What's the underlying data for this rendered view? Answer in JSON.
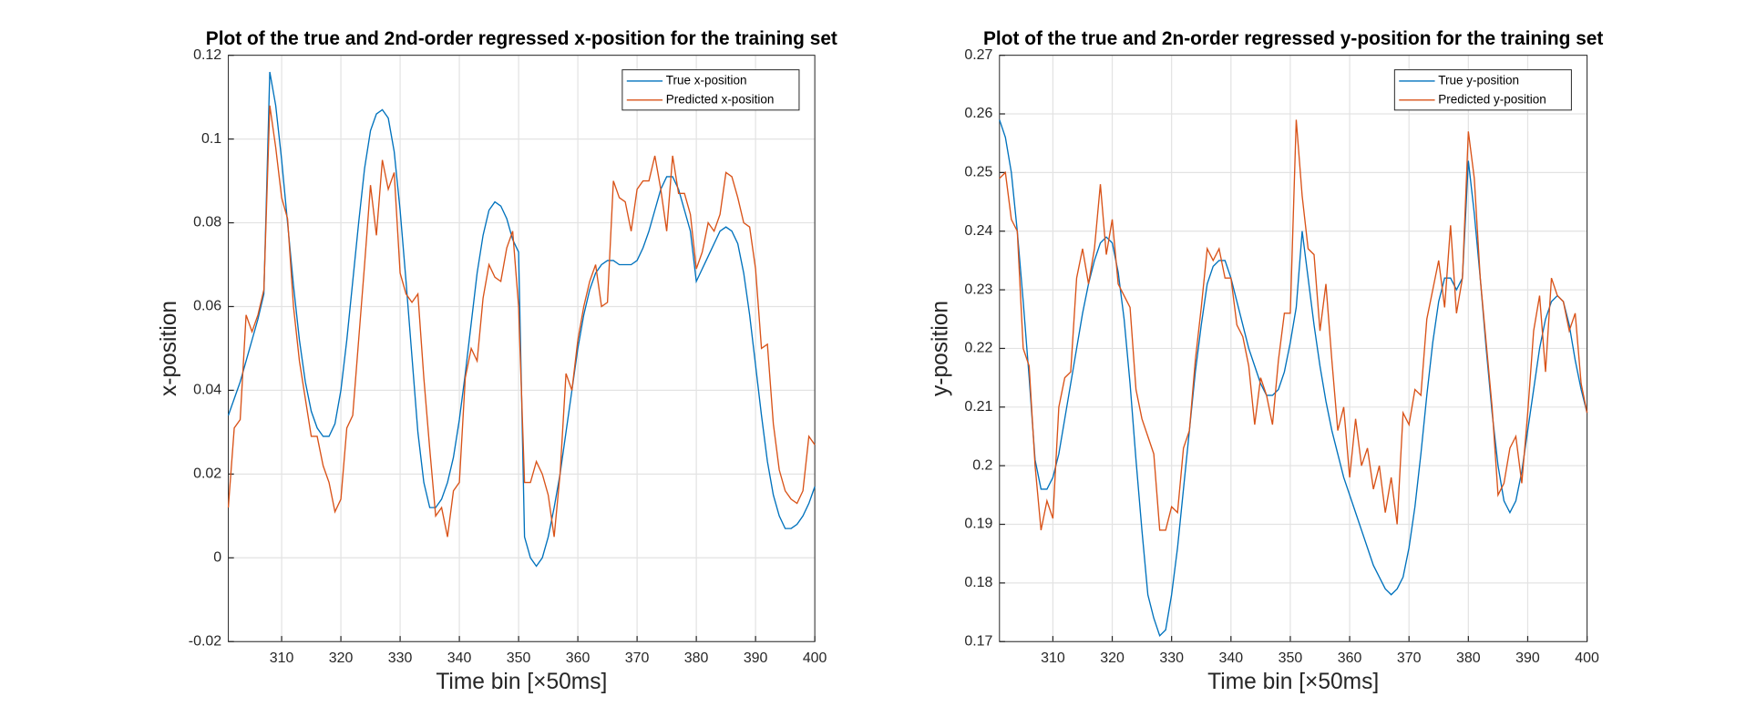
{
  "chart_data": [
    {
      "type": "line",
      "title": "Plot of the true and 2nd-order regressed x-position for the training set",
      "xlabel": "Time bin [×50ms]",
      "ylabel": "x-position",
      "x": [
        301,
        302,
        303,
        304,
        305,
        306,
        307,
        308,
        309,
        310,
        311,
        312,
        313,
        314,
        315,
        316,
        317,
        318,
        319,
        320,
        321,
        322,
        323,
        324,
        325,
        326,
        327,
        328,
        329,
        330,
        331,
        332,
        333,
        334,
        335,
        336,
        337,
        338,
        339,
        340,
        341,
        342,
        343,
        344,
        345,
        346,
        347,
        348,
        349,
        350,
        351,
        352,
        353,
        354,
        355,
        356,
        357,
        358,
        359,
        360,
        361,
        362,
        363,
        364,
        365,
        366,
        367,
        368,
        369,
        370,
        371,
        372,
        373,
        374,
        375,
        376,
        377,
        378,
        379,
        380,
        381,
        382,
        383,
        384,
        385,
        386,
        387,
        388,
        389,
        390,
        391,
        392,
        393,
        394,
        395,
        396,
        397,
        398,
        399,
        400
      ],
      "xlim": [
        301,
        400
      ],
      "xticks": [
        310,
        320,
        330,
        340,
        350,
        360,
        370,
        380,
        390,
        400
      ],
      "ylim": [
        -0.02,
        0.12
      ],
      "yticks": [
        -0.02,
        0,
        0.02,
        0.04,
        0.06,
        0.08,
        0.1,
        0.12
      ],
      "grid": true,
      "legend": "northeast",
      "series": [
        {
          "name": "True x-position",
          "color": "#0072BD",
          "values": [
            0.034,
            0.038,
            0.042,
            0.047,
            0.052,
            0.057,
            0.063,
            0.116,
            0.108,
            0.095,
            0.08,
            0.065,
            0.052,
            0.042,
            0.035,
            0.031,
            0.029,
            0.029,
            0.032,
            0.04,
            0.052,
            0.066,
            0.08,
            0.093,
            0.102,
            0.106,
            0.107,
            0.105,
            0.097,
            0.083,
            0.066,
            0.048,
            0.03,
            0.018,
            0.012,
            0.012,
            0.014,
            0.018,
            0.024,
            0.033,
            0.044,
            0.056,
            0.068,
            0.077,
            0.083,
            0.085,
            0.084,
            0.081,
            0.076,
            0.073,
            0.005,
            0,
            -0.002,
            0,
            0.005,
            0.012,
            0.02,
            0.03,
            0.04,
            0.05,
            0.058,
            0.064,
            0.068,
            0.07,
            0.071,
            0.071,
            0.07,
            0.07,
            0.07,
            0.071,
            0.074,
            0.078,
            0.083,
            0.088,
            0.091,
            0.091,
            0.088,
            0.083,
            0.078,
            0.066,
            0.069,
            0.072,
            0.075,
            0.078,
            0.079,
            0.078,
            0.075,
            0.068,
            0.058,
            0.046,
            0.034,
            0.023,
            0.015,
            0.01,
            0.007,
            0.007,
            0.008,
            0.01,
            0.013,
            0.017
          ]
        },
        {
          "name": "Predicted x-position",
          "color": "#D95319",
          "values": [
            0.012,
            0.031,
            0.033,
            0.058,
            0.054,
            0.058,
            0.064,
            0.108,
            0.098,
            0.086,
            0.081,
            0.06,
            0.047,
            0.038,
            0.029,
            0.029,
            0.022,
            0.018,
            0.011,
            0.014,
            0.031,
            0.034,
            0.052,
            0.07,
            0.089,
            0.077,
            0.095,
            0.088,
            0.092,
            0.068,
            0.063,
            0.061,
            0.063,
            0.043,
            0.026,
            0.01,
            0.012,
            0.005,
            0.016,
            0.018,
            0.043,
            0.05,
            0.047,
            0.062,
            0.07,
            0.067,
            0.066,
            0.074,
            0.078,
            0.06,
            0.018,
            0.018,
            0.023,
            0.02,
            0.015,
            0.005,
            0.02,
            0.044,
            0.04,
            0.052,
            0.06,
            0.066,
            0.07,
            0.06,
            0.061,
            0.09,
            0.086,
            0.085,
            0.078,
            0.088,
            0.09,
            0.09,
            0.096,
            0.088,
            0.078,
            0.096,
            0.087,
            0.087,
            0.082,
            0.069,
            0.073,
            0.08,
            0.078,
            0.082,
            0.092,
            0.091,
            0.086,
            0.08,
            0.079,
            0.069,
            0.05,
            0.051,
            0.032,
            0.021,
            0.016,
            0.014,
            0.013,
            0.016,
            0.029,
            0.027
          ]
        }
      ]
    },
    {
      "type": "line",
      "title": "Plot of the true and 2n-order regressed y-position for the training set",
      "xlabel": "Time bin [×50ms]",
      "ylabel": "y-position",
      "x": [
        301,
        302,
        303,
        304,
        305,
        306,
        307,
        308,
        309,
        310,
        311,
        312,
        313,
        314,
        315,
        316,
        317,
        318,
        319,
        320,
        321,
        322,
        323,
        324,
        325,
        326,
        327,
        328,
        329,
        330,
        331,
        332,
        333,
        334,
        335,
        336,
        337,
        338,
        339,
        340,
        341,
        342,
        343,
        344,
        345,
        346,
        347,
        348,
        349,
        350,
        351,
        352,
        353,
        354,
        355,
        356,
        357,
        358,
        359,
        360,
        361,
        362,
        363,
        364,
        365,
        366,
        367,
        368,
        369,
        370,
        371,
        372,
        373,
        374,
        375,
        376,
        377,
        378,
        379,
        380,
        381,
        382,
        383,
        384,
        385,
        386,
        387,
        388,
        389,
        390,
        391,
        392,
        393,
        394,
        395,
        396,
        397,
        398,
        399,
        400
      ],
      "xlim": [
        301,
        400
      ],
      "xticks": [
        310,
        320,
        330,
        340,
        350,
        360,
        370,
        380,
        390,
        400
      ],
      "ylim": [
        0.17,
        0.27
      ],
      "yticks": [
        0.17,
        0.18,
        0.19,
        0.2,
        0.21,
        0.22,
        0.23,
        0.24,
        0.25,
        0.26,
        0.27
      ],
      "grid": true,
      "legend": "northeast",
      "series": [
        {
          "name": "True y-position",
          "color": "#0072BD",
          "values": [
            0.259,
            0.256,
            0.25,
            0.24,
            0.228,
            0.215,
            0.201,
            0.196,
            0.196,
            0.198,
            0.202,
            0.208,
            0.214,
            0.22,
            0.226,
            0.231,
            0.235,
            0.238,
            0.239,
            0.238,
            0.233,
            0.225,
            0.214,
            0.201,
            0.189,
            0.178,
            0.174,
            0.171,
            0.172,
            0.178,
            0.186,
            0.196,
            0.206,
            0.216,
            0.224,
            0.231,
            0.234,
            0.235,
            0.235,
            0.232,
            0.228,
            0.224,
            0.22,
            0.217,
            0.214,
            0.212,
            0.212,
            0.213,
            0.216,
            0.221,
            0.227,
            0.24,
            0.232,
            0.224,
            0.217,
            0.211,
            0.206,
            0.202,
            0.198,
            0.195,
            0.192,
            0.189,
            0.186,
            0.183,
            0.181,
            0.179,
            0.178,
            0.179,
            0.181,
            0.186,
            0.193,
            0.202,
            0.212,
            0.221,
            0.228,
            0.232,
            0.232,
            0.23,
            0.232,
            0.252,
            0.243,
            0.232,
            0.22,
            0.209,
            0.2,
            0.194,
            0.192,
            0.194,
            0.199,
            0.206,
            0.213,
            0.22,
            0.225,
            0.228,
            0.229,
            0.228,
            0.224,
            0.218,
            0.213,
            0.209
          ]
        },
        {
          "name": "Predicted y-position",
          "color": "#D95319",
          "values": [
            0.249,
            0.25,
            0.242,
            0.24,
            0.22,
            0.217,
            0.2,
            0.189,
            0.194,
            0.191,
            0.21,
            0.215,
            0.216,
            0.232,
            0.237,
            0.231,
            0.237,
            0.248,
            0.236,
            0.242,
            0.231,
            0.229,
            0.227,
            0.213,
            0.208,
            0.205,
            0.202,
            0.189,
            0.189,
            0.193,
            0.192,
            0.203,
            0.206,
            0.218,
            0.227,
            0.237,
            0.235,
            0.237,
            0.232,
            0.232,
            0.224,
            0.222,
            0.217,
            0.207,
            0.215,
            0.212,
            0.207,
            0.218,
            0.226,
            0.226,
            0.259,
            0.246,
            0.237,
            0.236,
            0.223,
            0.231,
            0.218,
            0.206,
            0.21,
            0.198,
            0.208,
            0.2,
            0.203,
            0.196,
            0.2,
            0.192,
            0.198,
            0.19,
            0.209,
            0.207,
            0.213,
            0.212,
            0.225,
            0.23,
            0.235,
            0.227,
            0.241,
            0.226,
            0.232,
            0.257,
            0.249,
            0.232,
            0.221,
            0.21,
            0.195,
            0.197,
            0.203,
            0.205,
            0.197,
            0.209,
            0.223,
            0.229,
            0.216,
            0.232,
            0.229,
            0.228,
            0.223,
            0.226,
            0.214,
            0.209
          ]
        }
      ]
    }
  ]
}
